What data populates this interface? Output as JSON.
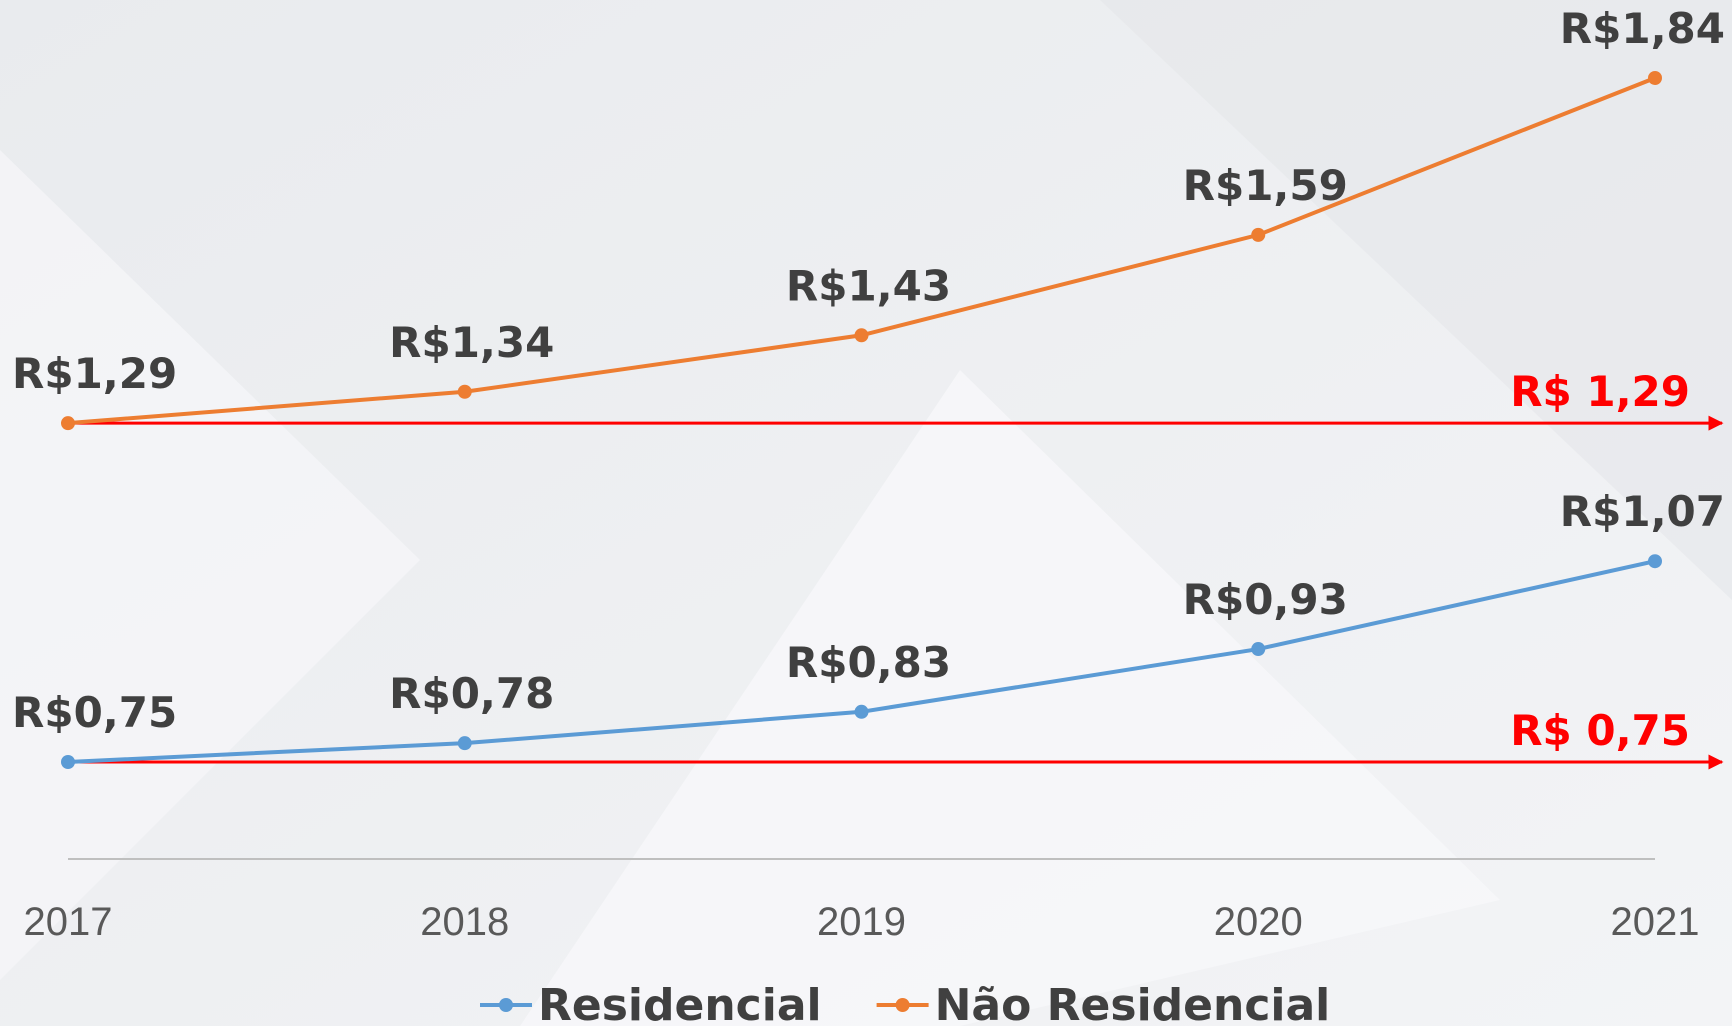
{
  "chart_data": {
    "type": "line",
    "categories": [
      "2017",
      "2018",
      "2019",
      "2020",
      "2021"
    ],
    "series": [
      {
        "name": "Residencial",
        "color": "#5b9bd5",
        "values": [
          0.75,
          0.78,
          0.83,
          0.93,
          1.07
        ],
        "value_labels": [
          "R$0,75",
          "R$0,78",
          "R$0,83",
          "R$0,93",
          "R$1,07"
        ]
      },
      {
        "name": "Não Residencial",
        "color": "#ed7d31",
        "values": [
          1.29,
          1.34,
          1.43,
          1.59,
          1.84
        ],
        "value_labels": [
          "R$1,29",
          "R$1,34",
          "R$1,43",
          "R$1,59",
          "R$1,84"
        ]
      }
    ],
    "annotations": [
      {
        "text": "R$ 1,29",
        "value": 1.29,
        "color": "#ff0000"
      },
      {
        "text": "R$ 0,75",
        "value": 0.75,
        "color": "#ff0000"
      }
    ],
    "legend": "bottom"
  }
}
